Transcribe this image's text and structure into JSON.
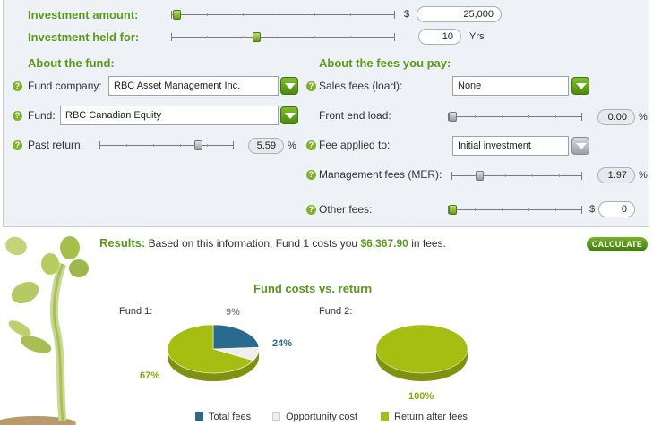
{
  "inputs": {
    "investment_amount": {
      "label": "Investment amount:",
      "currency": "$",
      "value": "25,000",
      "slider_fraction": 0.0
    },
    "investment_held": {
      "label": "Investment held for:",
      "value": "10",
      "unit": "Yrs",
      "slider_fraction": 0.37
    }
  },
  "fund": {
    "heading": "About the fund:",
    "company_label": "Fund company:",
    "company_value": "RBC Asset Management Inc.",
    "fund_label": "Fund:",
    "fund_value": "RBC Canadian Equity",
    "past_return_label": "Past return:",
    "past_return_value": "5.59",
    "past_return_unit": "%"
  },
  "fees": {
    "heading": "About the fees you pay:",
    "sales_label": "Sales fees (load):",
    "sales_value": "None",
    "front_label": "Front end load:",
    "front_value": "0.00",
    "front_unit": "%",
    "applied_label": "Fee applied to:",
    "applied_value": "Initial investment",
    "mer_label": "Management fees (MER):",
    "mer_value": "1.97",
    "mer_unit": "%",
    "other_label": "Other fees:",
    "other_currency": "$",
    "other_value": "0"
  },
  "help_glyph": "?",
  "results": {
    "label": "Results:",
    "text_before": "Based on this information, Fund 1 costs you",
    "amount": "$6,367.90",
    "text_after": "in fees.",
    "calculate": "CALCULATE"
  },
  "colors": {
    "accent_green": "#5a9a1a",
    "total_fees": "#2a6a8e",
    "opportunity_cost": "#eeeeee",
    "return_after_fees": "#a6bd12"
  },
  "chart_data": {
    "type": "pie",
    "title": "Fund costs vs. return",
    "charts": [
      {
        "name": "Fund 1:",
        "slices": [
          {
            "label": "Total fees",
            "value": 24,
            "text": "24%"
          },
          {
            "label": "Opportunity cost",
            "value": 9,
            "text": "9%"
          },
          {
            "label": "Return after fees",
            "value": 67,
            "text": "67%"
          }
        ]
      },
      {
        "name": "Fund 2:",
        "slices": [
          {
            "label": "Return after fees",
            "value": 100,
            "text": "100%"
          }
        ]
      }
    ],
    "legend": [
      "Total fees",
      "Opportunity cost",
      "Return after fees"
    ]
  }
}
